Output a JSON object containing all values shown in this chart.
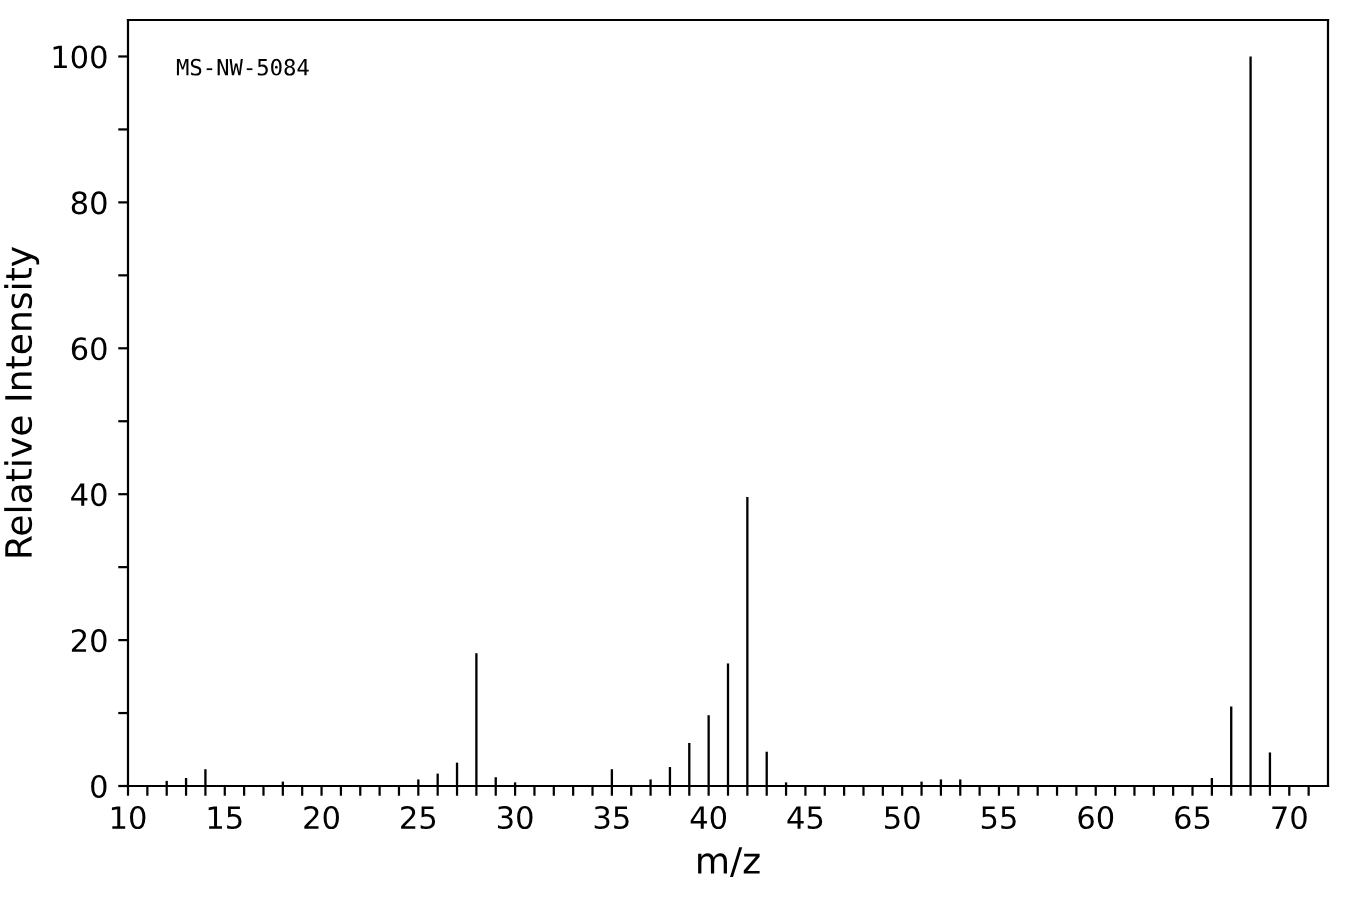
{
  "chart_data": {
    "type": "bar",
    "xlabel": "m/z",
    "ylabel": "Relative Intensity",
    "annotations": [
      "MS-NW-5084"
    ],
    "x": [
      12,
      13,
      14,
      18,
      25,
      26,
      27,
      28,
      29,
      30,
      35,
      37,
      38,
      39,
      40,
      41,
      42,
      43,
      44,
      51,
      52,
      53,
      66,
      67,
      68,
      69
    ],
    "values": [
      0.7,
      1.1,
      2.3,
      0.6,
      0.9,
      1.7,
      3.2,
      18.2,
      1.2,
      0.5,
      2.3,
      0.9,
      2.6,
      5.9,
      9.7,
      16.8,
      39.6,
      4.7,
      0.5,
      0.6,
      0.9,
      0.9,
      1.1,
      10.9,
      100,
      4.6
    ],
    "color": "#000000",
    "xlim": [
      10,
      72
    ],
    "ylim": [
      0,
      105
    ],
    "xticks": [
      10,
      {
        "value": 11,
        "label": null
      },
      {
        "value": 12,
        "label": null
      },
      {
        "value": 13,
        "label": null
      },
      {
        "value": 14,
        "label": null
      },
      15,
      {
        "value": 16,
        "label": null
      },
      {
        "value": 17,
        "label": null
      },
      {
        "value": 18,
        "label": null
      },
      {
        "value": 19,
        "label": null
      },
      20,
      {
        "value": 21,
        "label": null
      },
      {
        "value": 22,
        "label": null
      },
      {
        "value": 23,
        "label": null
      },
      {
        "value": 24,
        "label": null
      },
      25,
      {
        "value": 26,
        "label": null
      },
      {
        "value": 27,
        "label": null
      },
      {
        "value": 28,
        "label": null
      },
      {
        "value": 29,
        "label": null
      },
      30,
      {
        "value": 31,
        "label": null
      },
      {
        "value": 32,
        "label": null
      },
      {
        "value": 33,
        "label": null
      },
      {
        "value": 34,
        "label": null
      },
      35,
      {
        "value": 36,
        "label": null
      },
      {
        "value": 37,
        "label": null
      },
      {
        "value": 38,
        "label": null
      },
      {
        "value": 39,
        "label": null
      },
      40,
      {
        "value": 41,
        "label": null
      },
      {
        "value": 42,
        "label": null
      },
      {
        "value": 43,
        "label": null
      },
      {
        "value": 44,
        "label": null
      },
      45,
      {
        "value": 46,
        "label": null
      },
      {
        "value": 47,
        "label": null
      },
      {
        "value": 48,
        "label": null
      },
      {
        "value": 49,
        "label": null
      },
      50,
      {
        "value": 51,
        "label": null
      },
      {
        "value": 52,
        "label": null
      },
      {
        "value": 53,
        "label": null
      },
      {
        "value": 54,
        "label": null
      },
      55,
      {
        "value": 56,
        "label": null
      },
      {
        "value": 57,
        "label": null
      },
      {
        "value": 58,
        "label": null
      },
      {
        "value": 59,
        "label": null
      },
      60,
      {
        "value": 61,
        "label": null
      },
      {
        "value": 62,
        "label": null
      },
      {
        "value": 63,
        "label": null
      },
      {
        "value": 64,
        "label": null
      },
      65,
      {
        "value": 66,
        "label": null
      },
      {
        "value": 67,
        "label": null
      },
      {
        "value": 68,
        "label": null
      },
      {
        "value": 69,
        "label": null
      },
      70,
      {
        "value": 71,
        "label": null
      }
    ],
    "yticks": [
      0,
      {
        "value": 10,
        "label": null
      },
      20,
      {
        "value": 30,
        "label": null
      },
      40,
      {
        "value": 50,
        "label": null
      },
      60,
      {
        "value": 70,
        "label": null
      },
      80,
      {
        "value": 90,
        "label": null
      },
      100
    ],
    "grid": false,
    "legend": false
  }
}
